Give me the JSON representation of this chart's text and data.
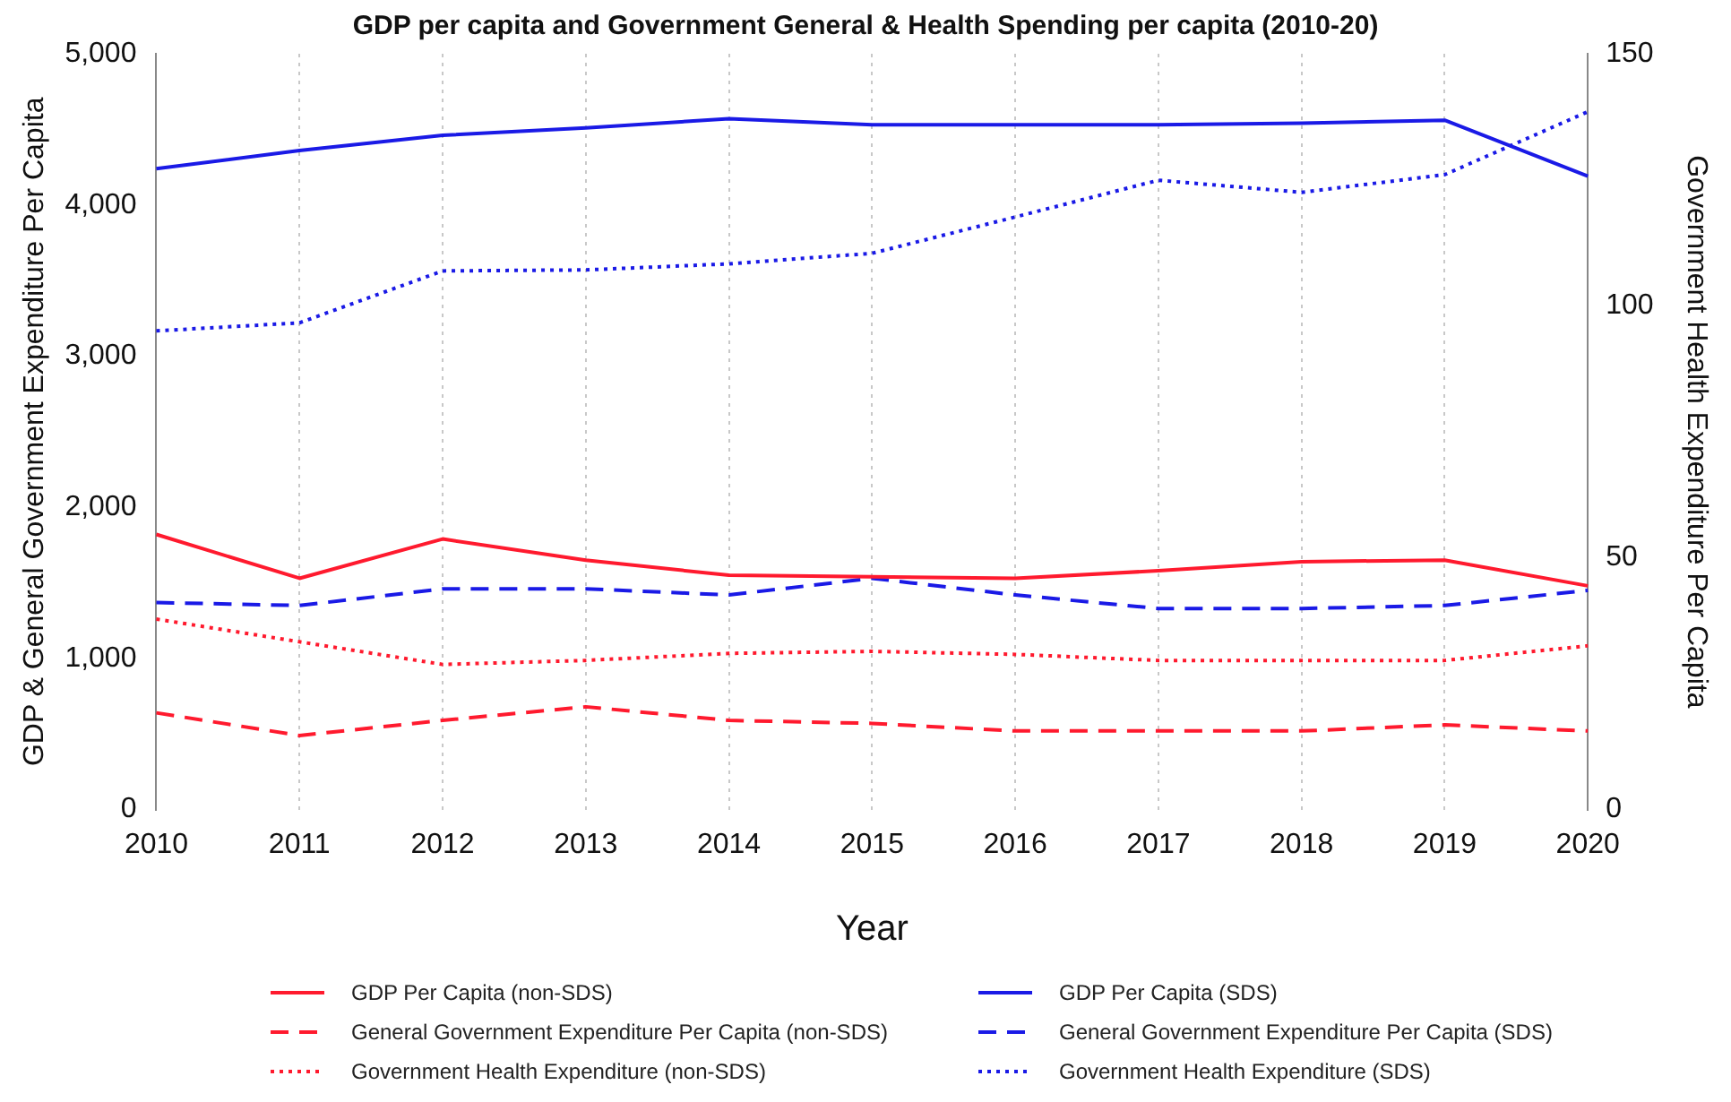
{
  "chart_data": {
    "type": "line",
    "title": "GDP per capita and Government General & Health Spending per capita (2010-20)",
    "xlabel": "Year",
    "ylabel": "GDP & General Government Expenditure Per Capita",
    "y2label": "Government Health Expenditure Per Capita",
    "categories": [
      "2010",
      "2011",
      "2012",
      "2013",
      "2014",
      "2015",
      "2016",
      "2017",
      "2018",
      "2019",
      "2020"
    ],
    "ylim": [
      0,
      5000
    ],
    "yticks": [
      {
        "value": 0,
        "label": "0"
      },
      {
        "value": 1000,
        "label": "1,000"
      },
      {
        "value": 2000,
        "label": "2,000"
      },
      {
        "value": 3000,
        "label": "3,000"
      },
      {
        "value": 4000,
        "label": "4,000"
      },
      {
        "value": 5000,
        "label": "5,000"
      }
    ],
    "y2lim": [
      0,
      150
    ],
    "y2ticks": [
      0,
      50,
      100,
      150
    ],
    "grid": "x",
    "legend": "bottom",
    "marker": "none",
    "series": [
      {
        "name": "GDP Per Capita (non-SDS)",
        "color": "#ff1a2e",
        "line_style": "solid",
        "values": [
          1820,
          1530,
          1790,
          1650,
          1550,
          1540,
          1530,
          1580,
          1640,
          1650,
          1480
        ]
      },
      {
        "name": "General Government Expenditure Per Capita (non-SDS)",
        "color": "#ff1a2e",
        "line_style": "dashed",
        "values": [
          640,
          490,
          590,
          680,
          590,
          570,
          520,
          520,
          520,
          560,
          520
        ]
      },
      {
        "name": "Government Health Expenditure (non-SDS)",
        "color": "#ff1a2e",
        "line_style": "dotted",
        "axis": "y2",
        "values": [
          37.8,
          33.3,
          28.8,
          29.6,
          31.0,
          31.4,
          30.8,
          29.6,
          29.6,
          29.6,
          32.5
        ]
      },
      {
        "name": "GDP Per Capita (SDS)",
        "color": "#1a1ae6",
        "line_style": "solid",
        "values": [
          4240,
          4360,
          4460,
          4510,
          4570,
          4530,
          4530,
          4530,
          4540,
          4560,
          4190
        ]
      },
      {
        "name": "General Government Expenditure Per Capita (SDS)",
        "color": "#1a1ae6",
        "line_style": "dashed",
        "values": [
          1370,
          1350,
          1460,
          1460,
          1420,
          1530,
          1420,
          1330,
          1330,
          1350,
          1450
        ]
      },
      {
        "name": "Government Health Expenditure (SDS)",
        "color": "#1a1ae6",
        "line_style": "dotted",
        "axis": "y2",
        "values": [
          95.0,
          96.6,
          106.9,
          107.1,
          108.3,
          110.4,
          117.6,
          124.9,
          122.5,
          126.0,
          138.5
        ]
      }
    ]
  }
}
